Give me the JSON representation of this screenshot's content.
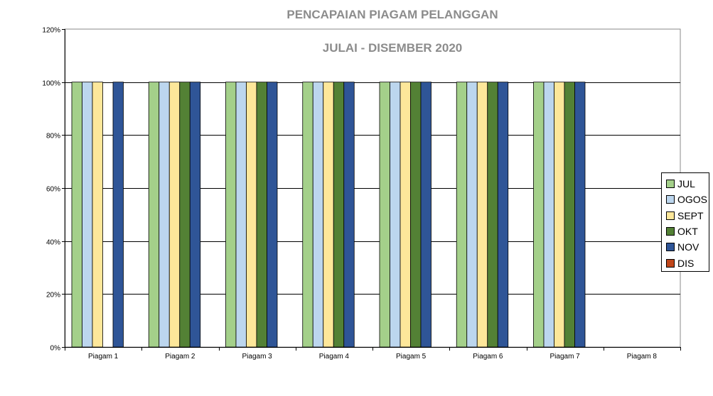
{
  "chart_data": {
    "type": "bar",
    "title": "PENCAPAIAN PIAGAM PELANGGAN",
    "subtitle": "JULAI - DISEMBER 2020",
    "xlabel": "",
    "ylabel": "",
    "ylim": [
      0,
      1.2
    ],
    "yticks": [
      "0%",
      "20%",
      "40%",
      "60%",
      "80%",
      "100%",
      "120%"
    ],
    "grid": true,
    "legend_position": "right",
    "categories": [
      "Piagam 1",
      "Piagam 2",
      "Piagam 3",
      "Piagam 4",
      "Piagam 5",
      "Piagam 6",
      "Piagam 7",
      "Piagam 8"
    ],
    "series": [
      {
        "name": "JUL",
        "color": "#a4d08a",
        "values": [
          1,
          1,
          1,
          1,
          1,
          1,
          1,
          null
        ]
      },
      {
        "name": "OGOS",
        "color": "#bcd6ee",
        "values": [
          1,
          1,
          1,
          1,
          1,
          1,
          1,
          null
        ]
      },
      {
        "name": "SEPT",
        "color": "#fde79a",
        "values": [
          1,
          1,
          1,
          1,
          1,
          1,
          1,
          null
        ]
      },
      {
        "name": "OKT",
        "color": "#538135",
        "values": [
          null,
          1,
          1,
          1,
          1,
          1,
          1,
          null
        ]
      },
      {
        "name": "NOV",
        "color": "#2f5597",
        "values": [
          1,
          1,
          1,
          1,
          1,
          1,
          1,
          null
        ]
      },
      {
        "name": "DIS",
        "color": "#c0461a",
        "values": [
          null,
          null,
          null,
          null,
          null,
          null,
          null,
          null
        ]
      }
    ]
  }
}
